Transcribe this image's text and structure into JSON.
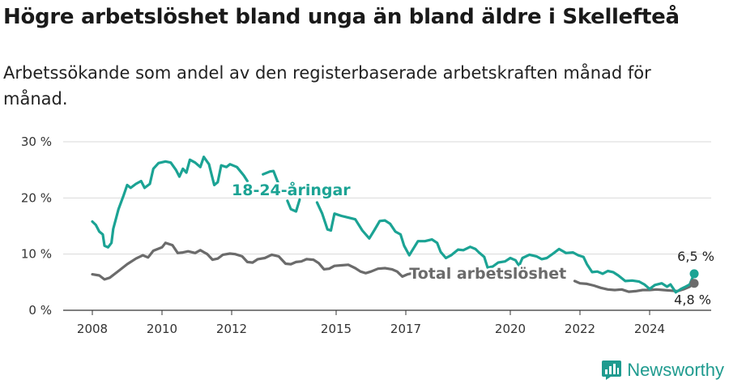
{
  "header": {
    "title": "Högre arbetslöshet bland unga än bland äldre i Skellefteå",
    "subtitle": "Arbetssökande som andel av den registerbaserade arbetskraften månad för månad."
  },
  "brand": {
    "name": "Newsworthy",
    "color": "#1f9b8f"
  },
  "chart_data": {
    "type": "line",
    "title": "Högre arbetslöshet bland unga än bland äldre i Skellefteå",
    "subtitle": "Arbetssökande som andel av den registerbaserade arbetskraften månad för månad.",
    "x_ticks": [
      "2008",
      "2010",
      "2012",
      "2015",
      "2017",
      "2020",
      "2022",
      "2024"
    ],
    "y_ticks": [
      "0 %",
      "10 %",
      "20 %",
      "30 %"
    ],
    "ylim": [
      0,
      30
    ],
    "xlim": [
      2007.6,
      2025.7
    ],
    "grid": true,
    "series": [
      {
        "name": "18-24-åringar",
        "color": "#1ba394",
        "end_label": "6,5 %",
        "points": [
          [
            2008.0,
            15.8
          ],
          [
            2008.1,
            15.2
          ],
          [
            2008.2,
            14.0
          ],
          [
            2008.3,
            13.5
          ],
          [
            2008.35,
            11.5
          ],
          [
            2008.45,
            11.2
          ],
          [
            2008.55,
            12.0
          ],
          [
            2008.6,
            14.5
          ],
          [
            2008.75,
            18.0
          ],
          [
            2008.9,
            20.5
          ],
          [
            2009.0,
            22.3
          ],
          [
            2009.1,
            21.8
          ],
          [
            2009.25,
            22.5
          ],
          [
            2009.4,
            23.0
          ],
          [
            2009.5,
            21.8
          ],
          [
            2009.65,
            22.5
          ],
          [
            2009.75,
            25.2
          ],
          [
            2009.9,
            26.2
          ],
          [
            2010.1,
            26.5
          ],
          [
            2010.25,
            26.3
          ],
          [
            2010.4,
            25.0
          ],
          [
            2010.5,
            23.8
          ],
          [
            2010.6,
            25.2
          ],
          [
            2010.7,
            24.5
          ],
          [
            2010.8,
            26.8
          ],
          [
            2010.95,
            26.3
          ],
          [
            2011.1,
            25.5
          ],
          [
            2011.2,
            27.3
          ],
          [
            2011.35,
            26.0
          ],
          [
            2011.45,
            23.5
          ],
          [
            2011.5,
            22.3
          ],
          [
            2011.6,
            22.8
          ],
          [
            2011.7,
            25.8
          ],
          [
            2011.85,
            25.5
          ],
          [
            2011.95,
            26.0
          ],
          [
            2012.15,
            25.5
          ],
          [
            2012.35,
            24.0
          ],
          [
            2012.45,
            23.0
          ]
        ],
        "points_b": [
          [
            2012.9,
            24.2
          ],
          [
            2013.1,
            24.7
          ],
          [
            2013.2,
            24.8
          ],
          [
            2013.3,
            23.2
          ],
          [
            2013.35,
            22.5
          ]
        ],
        "points_c": [
          [
            2013.6,
            19.5
          ],
          [
            2013.7,
            18.0
          ],
          [
            2013.85,
            17.6
          ],
          [
            2013.95,
            19.7
          ]
        ],
        "points_d": [
          [
            2014.45,
            19.2
          ],
          [
            2014.6,
            17.2
          ],
          [
            2014.75,
            14.4
          ],
          [
            2014.85,
            14.2
          ],
          [
            2014.95,
            17.2
          ],
          [
            2015.15,
            16.8
          ],
          [
            2015.35,
            16.5
          ],
          [
            2015.55,
            16.2
          ],
          [
            2015.75,
            14.2
          ],
          [
            2015.95,
            12.8
          ],
          [
            2016.1,
            14.3
          ],
          [
            2016.25,
            15.9
          ],
          [
            2016.4,
            16.0
          ],
          [
            2016.55,
            15.4
          ],
          [
            2016.7,
            14.0
          ],
          [
            2016.85,
            13.5
          ],
          [
            2016.95,
            11.5
          ],
          [
            2017.1,
            9.8
          ],
          [
            2017.2,
            10.8
          ],
          [
            2017.35,
            12.3
          ],
          [
            2017.55,
            12.3
          ],
          [
            2017.75,
            12.6
          ],
          [
            2017.9,
            12.0
          ],
          [
            2018.0,
            10.4
          ],
          [
            2018.15,
            9.3
          ],
          [
            2018.3,
            9.8
          ],
          [
            2018.5,
            10.8
          ],
          [
            2018.65,
            10.7
          ],
          [
            2018.85,
            11.3
          ],
          [
            2019.0,
            10.9
          ],
          [
            2019.1,
            10.3
          ],
          [
            2019.25,
            9.5
          ],
          [
            2019.35,
            7.6
          ],
          [
            2019.5,
            7.8
          ],
          [
            2019.65,
            8.5
          ],
          [
            2019.85,
            8.7
          ],
          [
            2020.0,
            9.3
          ],
          [
            2020.15,
            8.9
          ],
          [
            2020.25,
            7.9
          ],
          [
            2020.35,
            9.3
          ],
          [
            2020.55,
            9.9
          ],
          [
            2020.75,
            9.6
          ],
          [
            2020.9,
            9.1
          ],
          [
            2021.05,
            9.3
          ],
          [
            2021.25,
            10.2
          ],
          [
            2021.4,
            10.9
          ],
          [
            2021.6,
            10.2
          ],
          [
            2021.8,
            10.3
          ],
          [
            2021.95,
            9.8
          ],
          [
            2022.1,
            9.5
          ],
          [
            2022.2,
            8.2
          ],
          [
            2022.35,
            6.8
          ],
          [
            2022.5,
            6.9
          ],
          [
            2022.65,
            6.5
          ],
          [
            2022.8,
            7.0
          ],
          [
            2022.95,
            6.8
          ],
          [
            2023.1,
            6.2
          ],
          [
            2023.3,
            5.2
          ],
          [
            2023.5,
            5.3
          ],
          [
            2023.7,
            5.1
          ],
          [
            2023.85,
            4.6
          ],
          [
            2024.0,
            3.8
          ],
          [
            2024.15,
            4.5
          ],
          [
            2024.35,
            4.8
          ],
          [
            2024.5,
            4.2
          ],
          [
            2024.6,
            4.6
          ],
          [
            2024.75,
            3.2
          ],
          [
            2024.9,
            3.8
          ],
          [
            2025.0,
            4.1
          ],
          [
            2025.15,
            4.6
          ],
          [
            2025.28,
            6.5
          ]
        ]
      },
      {
        "name": "Total arbetslöshet",
        "color": "#6b6b6b",
        "end_label": "4,8 %",
        "points": [
          [
            2008.0,
            6.4
          ],
          [
            2008.2,
            6.2
          ],
          [
            2008.35,
            5.5
          ],
          [
            2008.5,
            5.8
          ],
          [
            2008.75,
            7.0
          ],
          [
            2009.0,
            8.2
          ],
          [
            2009.25,
            9.2
          ],
          [
            2009.45,
            9.8
          ],
          [
            2009.6,
            9.4
          ],
          [
            2009.75,
            10.6
          ],
          [
            2010.0,
            11.2
          ],
          [
            2010.1,
            12.0
          ],
          [
            2010.3,
            11.6
          ],
          [
            2010.45,
            10.2
          ],
          [
            2010.6,
            10.3
          ],
          [
            2010.75,
            10.5
          ],
          [
            2010.95,
            10.2
          ],
          [
            2011.1,
            10.7
          ],
          [
            2011.3,
            10.0
          ],
          [
            2011.45,
            9.0
          ],
          [
            2011.6,
            9.2
          ],
          [
            2011.75,
            9.9
          ],
          [
            2011.95,
            10.1
          ],
          [
            2012.1,
            10.0
          ],
          [
            2012.3,
            9.6
          ],
          [
            2012.45,
            8.6
          ],
          [
            2012.6,
            8.5
          ],
          [
            2012.75,
            9.1
          ],
          [
            2012.95,
            9.3
          ],
          [
            2013.15,
            9.9
          ],
          [
            2013.35,
            9.6
          ],
          [
            2013.55,
            8.3
          ],
          [
            2013.7,
            8.2
          ],
          [
            2013.85,
            8.6
          ],
          [
            2014.0,
            8.7
          ],
          [
            2014.15,
            9.1
          ],
          [
            2014.35,
            9.0
          ],
          [
            2014.5,
            8.4
          ],
          [
            2014.65,
            7.3
          ],
          [
            2014.8,
            7.4
          ],
          [
            2014.95,
            7.9
          ],
          [
            2015.15,
            8.0
          ],
          [
            2015.35,
            8.1
          ],
          [
            2015.55,
            7.5
          ],
          [
            2015.7,
            6.9
          ],
          [
            2015.85,
            6.6
          ],
          [
            2016.0,
            6.9
          ],
          [
            2016.2,
            7.4
          ],
          [
            2016.4,
            7.5
          ],
          [
            2016.6,
            7.3
          ],
          [
            2016.75,
            6.9
          ],
          [
            2016.9,
            6.0
          ],
          [
            2017.05,
            6.4
          ],
          [
            2017.2,
            6.6
          ],
          [
            2017.35,
            7.0
          ],
          [
            2017.5,
            7.1
          ],
          [
            2017.55,
            7.1
          ]
        ],
        "points_b": [
          [
            2021.85,
            5.2
          ],
          [
            2022.0,
            4.8
          ],
          [
            2022.2,
            4.7
          ],
          [
            2022.4,
            4.4
          ],
          [
            2022.6,
            4.0
          ],
          [
            2022.8,
            3.7
          ],
          [
            2023.0,
            3.6
          ],
          [
            2023.2,
            3.7
          ],
          [
            2023.4,
            3.3
          ],
          [
            2023.6,
            3.4
          ],
          [
            2023.8,
            3.6
          ],
          [
            2024.0,
            3.6
          ],
          [
            2024.2,
            3.7
          ],
          [
            2024.4,
            3.6
          ],
          [
            2024.6,
            3.5
          ],
          [
            2024.8,
            3.4
          ],
          [
            2025.0,
            3.8
          ],
          [
            2025.15,
            4.2
          ],
          [
            2025.28,
            4.8
          ]
        ]
      }
    ],
    "annotations": [
      {
        "text": "18-24-åringar",
        "color": "#1ba394",
        "x": 2012.0,
        "y": 20.5
      },
      {
        "text": "Total arbetslöshet",
        "color": "#6b6b6b",
        "x": 2017.1,
        "y": 5.6
      }
    ]
  }
}
